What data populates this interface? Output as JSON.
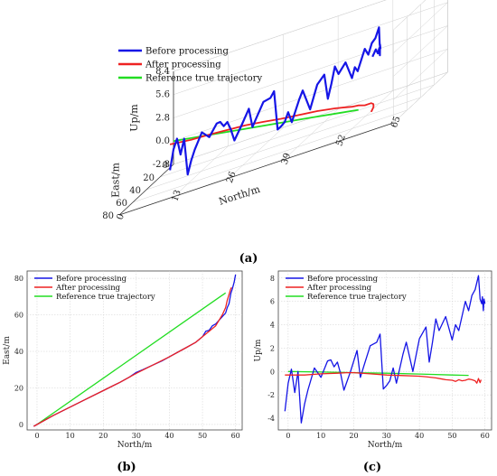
{
  "colors": {
    "before": "#1515e6",
    "after": "#ee2222",
    "reference": "#22dd22",
    "grid": "#cfcfcf",
    "axis": "#444444"
  },
  "legend": {
    "before": "Before processing",
    "after": "After processing",
    "reference": "Reference true trajectory"
  },
  "panels": {
    "a": "(a)",
    "b": "(b)",
    "c": "(c)"
  },
  "chart_data": [
    {
      "id": "a",
      "type": "line",
      "projection": "3d",
      "xlabel": "North/m",
      "ylabel": "East/m",
      "zlabel": "Up/m",
      "x_ticks": [
        0,
        13,
        26,
        39,
        52,
        65
      ],
      "y_ticks": [
        0,
        20,
        40,
        60,
        80
      ],
      "z_ticks": [
        -2.8,
        0.0,
        2.8,
        5.6,
        8.4
      ],
      "xlim": [
        0,
        65
      ],
      "ylim": [
        0,
        80
      ],
      "zlim": [
        -2.8,
        8.4
      ],
      "grid": true,
      "legend_position": "top-left",
      "series": [
        {
          "key": "before",
          "name": "Before processing",
          "points": [
            [
              -1,
              -1,
              -3.4
            ],
            [
              0,
              0,
              -1
            ],
            [
              1,
              1,
              0.2
            ],
            [
              2,
              2,
              -1.8
            ],
            [
              3,
              3,
              0
            ],
            [
              4,
              4,
              -4.4
            ],
            [
              5,
              5,
              -2.8
            ],
            [
              6,
              6,
              -1.6
            ],
            [
              8,
              8,
              0.3
            ],
            [
              10,
              9.5,
              -0.5
            ],
            [
              12,
              11,
              0.9
            ],
            [
              13,
              12,
              1.0
            ],
            [
              14,
              13,
              0.4
            ],
            [
              15,
              14,
              0.8
            ],
            [
              16,
              15,
              -0.2
            ],
            [
              17,
              16,
              -1.6
            ],
            [
              19,
              18,
              0
            ],
            [
              21,
              19.5,
              1.8
            ],
            [
              22,
              20.5,
              -0.5
            ],
            [
              23,
              21.5,
              0.4
            ],
            [
              25,
              23,
              2.2
            ],
            [
              27,
              25,
              2.5
            ],
            [
              28,
              26,
              3.2
            ],
            [
              29,
              27,
              -1.5
            ],
            [
              30,
              28,
              -1.2
            ],
            [
              31,
              29,
              -0.8
            ],
            [
              32,
              30,
              0.3
            ],
            [
              33,
              31,
              -1
            ],
            [
              35,
              32.5,
              1.5
            ],
            [
              36,
              33.5,
              2.5
            ],
            [
              38,
              35,
              0
            ],
            [
              40,
              37,
              2.8
            ],
            [
              42,
              39,
              3.8
            ],
            [
              43,
              40,
              0.8
            ],
            [
              44,
              41,
              2.5
            ],
            [
              45,
              42,
              4.5
            ],
            [
              46,
              43,
              3.5
            ],
            [
              48,
              45,
              4.7
            ],
            [
              50,
              48,
              2.7
            ],
            [
              51,
              50,
              4
            ],
            [
              52,
              52,
              3.5
            ],
            [
              54,
              54,
              6
            ],
            [
              55,
              55,
              5.2
            ],
            [
              56,
              56,
              6.5
            ],
            [
              57,
              57,
              7
            ],
            [
              58,
              58,
              8.2
            ],
            [
              58.5,
              60,
              6.2
            ],
            [
              59,
              62,
              5.8
            ],
            [
              59.2,
              64,
              6.4
            ],
            [
              59.5,
              66,
              5.2
            ],
            [
              59.7,
              68,
              6.2
            ],
            [
              60,
              72,
              5.8
            ],
            [
              60,
              75,
              6.5
            ],
            [
              60,
              80,
              6.0
            ]
          ]
        },
        {
          "key": "after",
          "name": "After processing",
          "points": [
            [
              -1,
              -1,
              -0.3
            ],
            [
              5,
              5,
              -0.3
            ],
            [
              10,
              9.5,
              -0.2
            ],
            [
              15,
              14,
              -0.15
            ],
            [
              20,
              18.5,
              -0.1
            ],
            [
              25,
              23,
              -0.2
            ],
            [
              30,
              28,
              -0.3
            ],
            [
              35,
              32.5,
              -0.35
            ],
            [
              40,
              37,
              -0.4
            ],
            [
              45,
              42,
              -0.55
            ],
            [
              48,
              45,
              -0.7
            ],
            [
              50,
              48,
              -0.75
            ],
            [
              52,
              51,
              -0.7
            ],
            [
              54,
              54,
              -0.8
            ],
            [
              56,
              57,
              -0.65
            ],
            [
              57,
              60,
              -0.7
            ],
            [
              58,
              66,
              -0.75
            ],
            [
              58.5,
              72,
              -0.9
            ],
            [
              58.8,
              75,
              -0.7
            ]
          ]
        },
        {
          "key": "reference",
          "name": "Reference true trajectory",
          "points": [
            [
              0,
              0,
              0
            ],
            [
              10,
              12.6,
              -0.05
            ],
            [
              20,
              25.3,
              -0.1
            ],
            [
              30,
              37.9,
              -0.15
            ],
            [
              40,
              50.5,
              -0.22
            ],
            [
              50,
              63.2,
              -0.3
            ],
            [
              55,
              69.5,
              -0.33
            ]
          ]
        }
      ]
    },
    {
      "id": "b",
      "type": "line",
      "xlabel": "North/m",
      "ylabel": "East/m",
      "x_ticks": [
        0,
        10,
        20,
        30,
        40,
        50,
        60
      ],
      "y_ticks": [
        0,
        20,
        40,
        60,
        80
      ],
      "xlim": [
        -3,
        62
      ],
      "ylim": [
        -3,
        84
      ],
      "grid": true,
      "legend_position": "top-left",
      "series": [
        {
          "key": "before",
          "name": "Before processing",
          "points": [
            [
              -1,
              -1
            ],
            [
              0,
              0
            ],
            [
              5,
              5
            ],
            [
              10,
              9.5
            ],
            [
              15,
              14
            ],
            [
              20,
              18.5
            ],
            [
              25,
              23
            ],
            [
              28,
              26
            ],
            [
              30,
              28.5
            ],
            [
              32,
              30
            ],
            [
              35,
              32.5
            ],
            [
              38,
              35
            ],
            [
              40,
              37
            ],
            [
              43,
              40
            ],
            [
              45,
              42
            ],
            [
              48,
              45
            ],
            [
              50,
              48
            ],
            [
              51,
              51
            ],
            [
              52,
              51.5
            ],
            [
              53,
              54
            ],
            [
              54,
              55
            ],
            [
              55,
              57
            ],
            [
              56,
              59
            ],
            [
              57,
              61
            ],
            [
              57.5,
              64
            ],
            [
              58,
              66
            ],
            [
              58.3,
              69
            ],
            [
              58.6,
              72
            ],
            [
              59,
              74
            ],
            [
              59.3,
              76
            ],
            [
              59.6,
              78
            ],
            [
              59.8,
              80
            ],
            [
              60,
              82
            ]
          ]
        },
        {
          "key": "after",
          "name": "After processing",
          "points": [
            [
              -1,
              -1
            ],
            [
              5,
              5
            ],
            [
              10,
              9.5
            ],
            [
              15,
              14
            ],
            [
              20,
              18.5
            ],
            [
              25,
              23
            ],
            [
              30,
              28
            ],
            [
              35,
              32.5
            ],
            [
              40,
              37
            ],
            [
              45,
              42
            ],
            [
              48,
              45
            ],
            [
              50,
              48
            ],
            [
              52,
              51
            ],
            [
              54,
              54
            ],
            [
              55,
              57
            ],
            [
              56,
              60
            ],
            [
              57,
              64
            ],
            [
              57.5,
              68
            ],
            [
              58,
              71
            ],
            [
              58.5,
              74
            ],
            [
              58.8,
              75
            ]
          ]
        },
        {
          "key": "reference",
          "name": "Reference true trajectory",
          "points": [
            [
              0,
              0
            ],
            [
              55,
              69.5
            ],
            [
              57,
              72
            ]
          ]
        }
      ]
    },
    {
      "id": "c",
      "type": "line",
      "xlabel": "North/m",
      "ylabel": "Up/m",
      "x_ticks": [
        0,
        10,
        20,
        30,
        40,
        50,
        60
      ],
      "y_ticks": [
        -4,
        -2,
        0,
        2,
        4,
        6,
        8
      ],
      "xlim": [
        -3,
        62
      ],
      "ylim": [
        -5,
        8.6
      ],
      "grid": true,
      "legend_position": "top-left",
      "series": [
        {
          "key": "before",
          "name": "Before processing",
          "points": [
            [
              -1,
              -3.4
            ],
            [
              0,
              -1
            ],
            [
              1,
              0.2
            ],
            [
              2,
              -1.8
            ],
            [
              3,
              0
            ],
            [
              4,
              -4.4
            ],
            [
              5,
              -2.8
            ],
            [
              6,
              -1.6
            ],
            [
              8,
              0.3
            ],
            [
              10,
              -0.5
            ],
            [
              12,
              0.9
            ],
            [
              13,
              1.0
            ],
            [
              14,
              0.4
            ],
            [
              15,
              0.8
            ],
            [
              16,
              -0.2
            ],
            [
              17,
              -1.6
            ],
            [
              19,
              0
            ],
            [
              21,
              1.8
            ],
            [
              22,
              -0.5
            ],
            [
              23,
              0.4
            ],
            [
              25,
              2.2
            ],
            [
              27,
              2.5
            ],
            [
              28,
              3.2
            ],
            [
              29,
              -1.5
            ],
            [
              30,
              -1.2
            ],
            [
              31,
              -0.8
            ],
            [
              32,
              0.3
            ],
            [
              33,
              -1
            ],
            [
              35,
              1.5
            ],
            [
              36,
              2.5
            ],
            [
              38,
              0
            ],
            [
              40,
              2.8
            ],
            [
              42,
              3.8
            ],
            [
              43,
              0.8
            ],
            [
              44,
              2.5
            ],
            [
              45,
              4.5
            ],
            [
              46,
              3.5
            ],
            [
              48,
              4.7
            ],
            [
              50,
              2.7
            ],
            [
              51,
              4
            ],
            [
              52,
              3.5
            ],
            [
              54,
              6
            ],
            [
              55,
              5.2
            ],
            [
              56,
              6.5
            ],
            [
              57,
              7
            ],
            [
              58,
              8.2
            ],
            [
              58.5,
              6.2
            ],
            [
              59,
              5.8
            ],
            [
              59.2,
              6.4
            ],
            [
              59.5,
              5.2
            ],
            [
              59.7,
              6.2
            ],
            [
              60,
              5.8
            ]
          ]
        },
        {
          "key": "after",
          "name": "After processing",
          "points": [
            [
              -1,
              -0.3
            ],
            [
              5,
              -0.3
            ],
            [
              10,
              -0.2
            ],
            [
              15,
              -0.15
            ],
            [
              18,
              -0.1
            ],
            [
              20,
              -0.1
            ],
            [
              25,
              -0.2
            ],
            [
              30,
              -0.3
            ],
            [
              35,
              -0.35
            ],
            [
              40,
              -0.4
            ],
            [
              42,
              -0.45
            ],
            [
              45,
              -0.55
            ],
            [
              47,
              -0.65
            ],
            [
              48,
              -0.7
            ],
            [
              50,
              -0.75
            ],
            [
              51,
              -0.85
            ],
            [
              52,
              -0.7
            ],
            [
              53,
              -0.8
            ],
            [
              54,
              -0.75
            ],
            [
              55,
              -0.65
            ],
            [
              56,
              -0.7
            ],
            [
              57,
              -0.8
            ],
            [
              57.5,
              -1.0
            ],
            [
              58,
              -0.6
            ],
            [
              58.5,
              -0.95
            ],
            [
              58.8,
              -0.7
            ]
          ]
        },
        {
          "key": "reference",
          "name": "Reference true trajectory",
          "points": [
            [
              0,
              0
            ],
            [
              10,
              -0.05
            ],
            [
              20,
              -0.1
            ],
            [
              30,
              -0.15
            ],
            [
              40,
              -0.22
            ],
            [
              50,
              -0.3
            ],
            [
              55,
              -0.33
            ]
          ]
        }
      ]
    }
  ]
}
